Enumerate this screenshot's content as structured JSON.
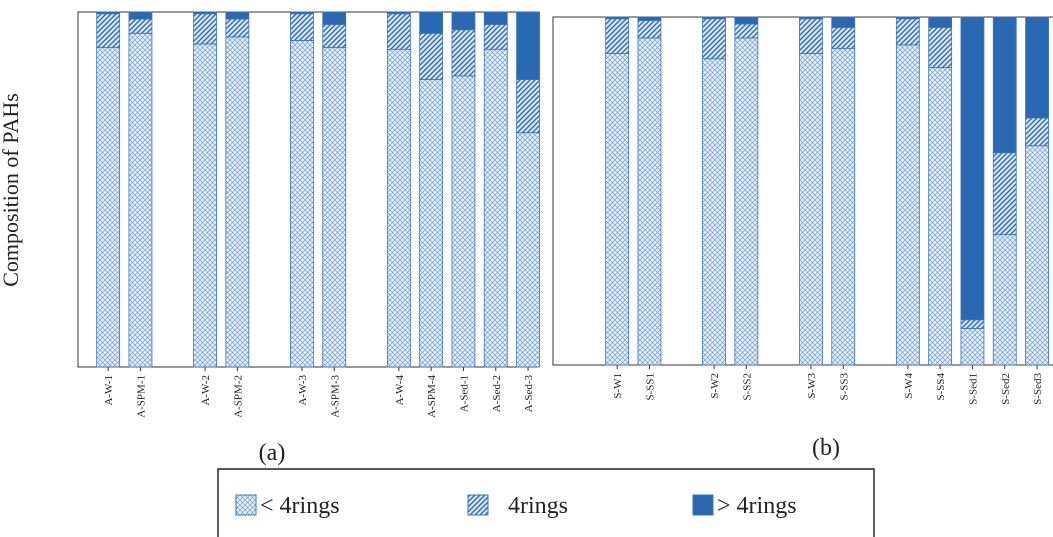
{
  "chart_data": [
    {
      "type": "stacked_bar",
      "title": "(a)",
      "ylabel": "Composition of PAHs",
      "ylim": [
        0,
        100
      ],
      "categories": [
        "A-W-1",
        "A-SPM-1",
        null,
        "A-W-2",
        "A-SPM-2",
        null,
        "A-W-3",
        "A-SPM-3",
        null,
        "A-W-4",
        "A-SPM-4",
        "A-Sed-1",
        "A-Sed-2",
        "A-Sed-3"
      ],
      "series": [
        {
          "name": "< 4rings",
          "color": "#5b8fcf",
          "hatch": "cross",
          "values": [
            90,
            94,
            null,
            91,
            93,
            null,
            92,
            90,
            null,
            89.5,
            81,
            82,
            89.5,
            66
          ]
        },
        {
          "name": "4rings",
          "color": "#2f6cb5",
          "hatch": "diagonal",
          "values": [
            9.5,
            4,
            null,
            8.5,
            5,
            null,
            7.5,
            6.5,
            null,
            10,
            13,
            13,
            7,
            15
          ]
        },
        {
          "name": "> 4rings",
          "color": "#2a68b2",
          "hatch": "solid",
          "values": [
            0.5,
            2,
            null,
            0.5,
            2,
            null,
            0.5,
            3.5,
            null,
            0.5,
            6,
            5,
            3.5,
            19
          ]
        }
      ]
    },
    {
      "type": "stacked_bar",
      "title": "(b)",
      "ylim": [
        0,
        100
      ],
      "categories": [
        "S-W1",
        "S-SS1",
        null,
        "S-W2",
        "S-SS2",
        null,
        "S-W3",
        "S-SS3",
        null,
        "S-W4",
        "S-SS4",
        "S-Sed1",
        "S-Sed2",
        "S-Sed3"
      ],
      "series": [
        {
          "color": "#5b8fcf",
          "hatch": "cross",
          "values": [
            89.5,
            94,
            null,
            88,
            94,
            null,
            89.5,
            91,
            null,
            92,
            85.5,
            10.5,
            37.5,
            63
          ]
        },
        {
          "color": "#2f6cb5",
          "hatch": "diagonal",
          "values": [
            10,
            5,
            null,
            11.5,
            4,
            null,
            10,
            6,
            null,
            7.5,
            11.5,
            2.5,
            23.5,
            8
          ]
        },
        {
          "color": "#2a68b2",
          "hatch": "solid",
          "values": [
            0.5,
            1,
            null,
            0.5,
            2,
            null,
            0.5,
            3,
            null,
            0.5,
            3,
            87,
            39,
            29
          ]
        }
      ]
    }
  ]
}
